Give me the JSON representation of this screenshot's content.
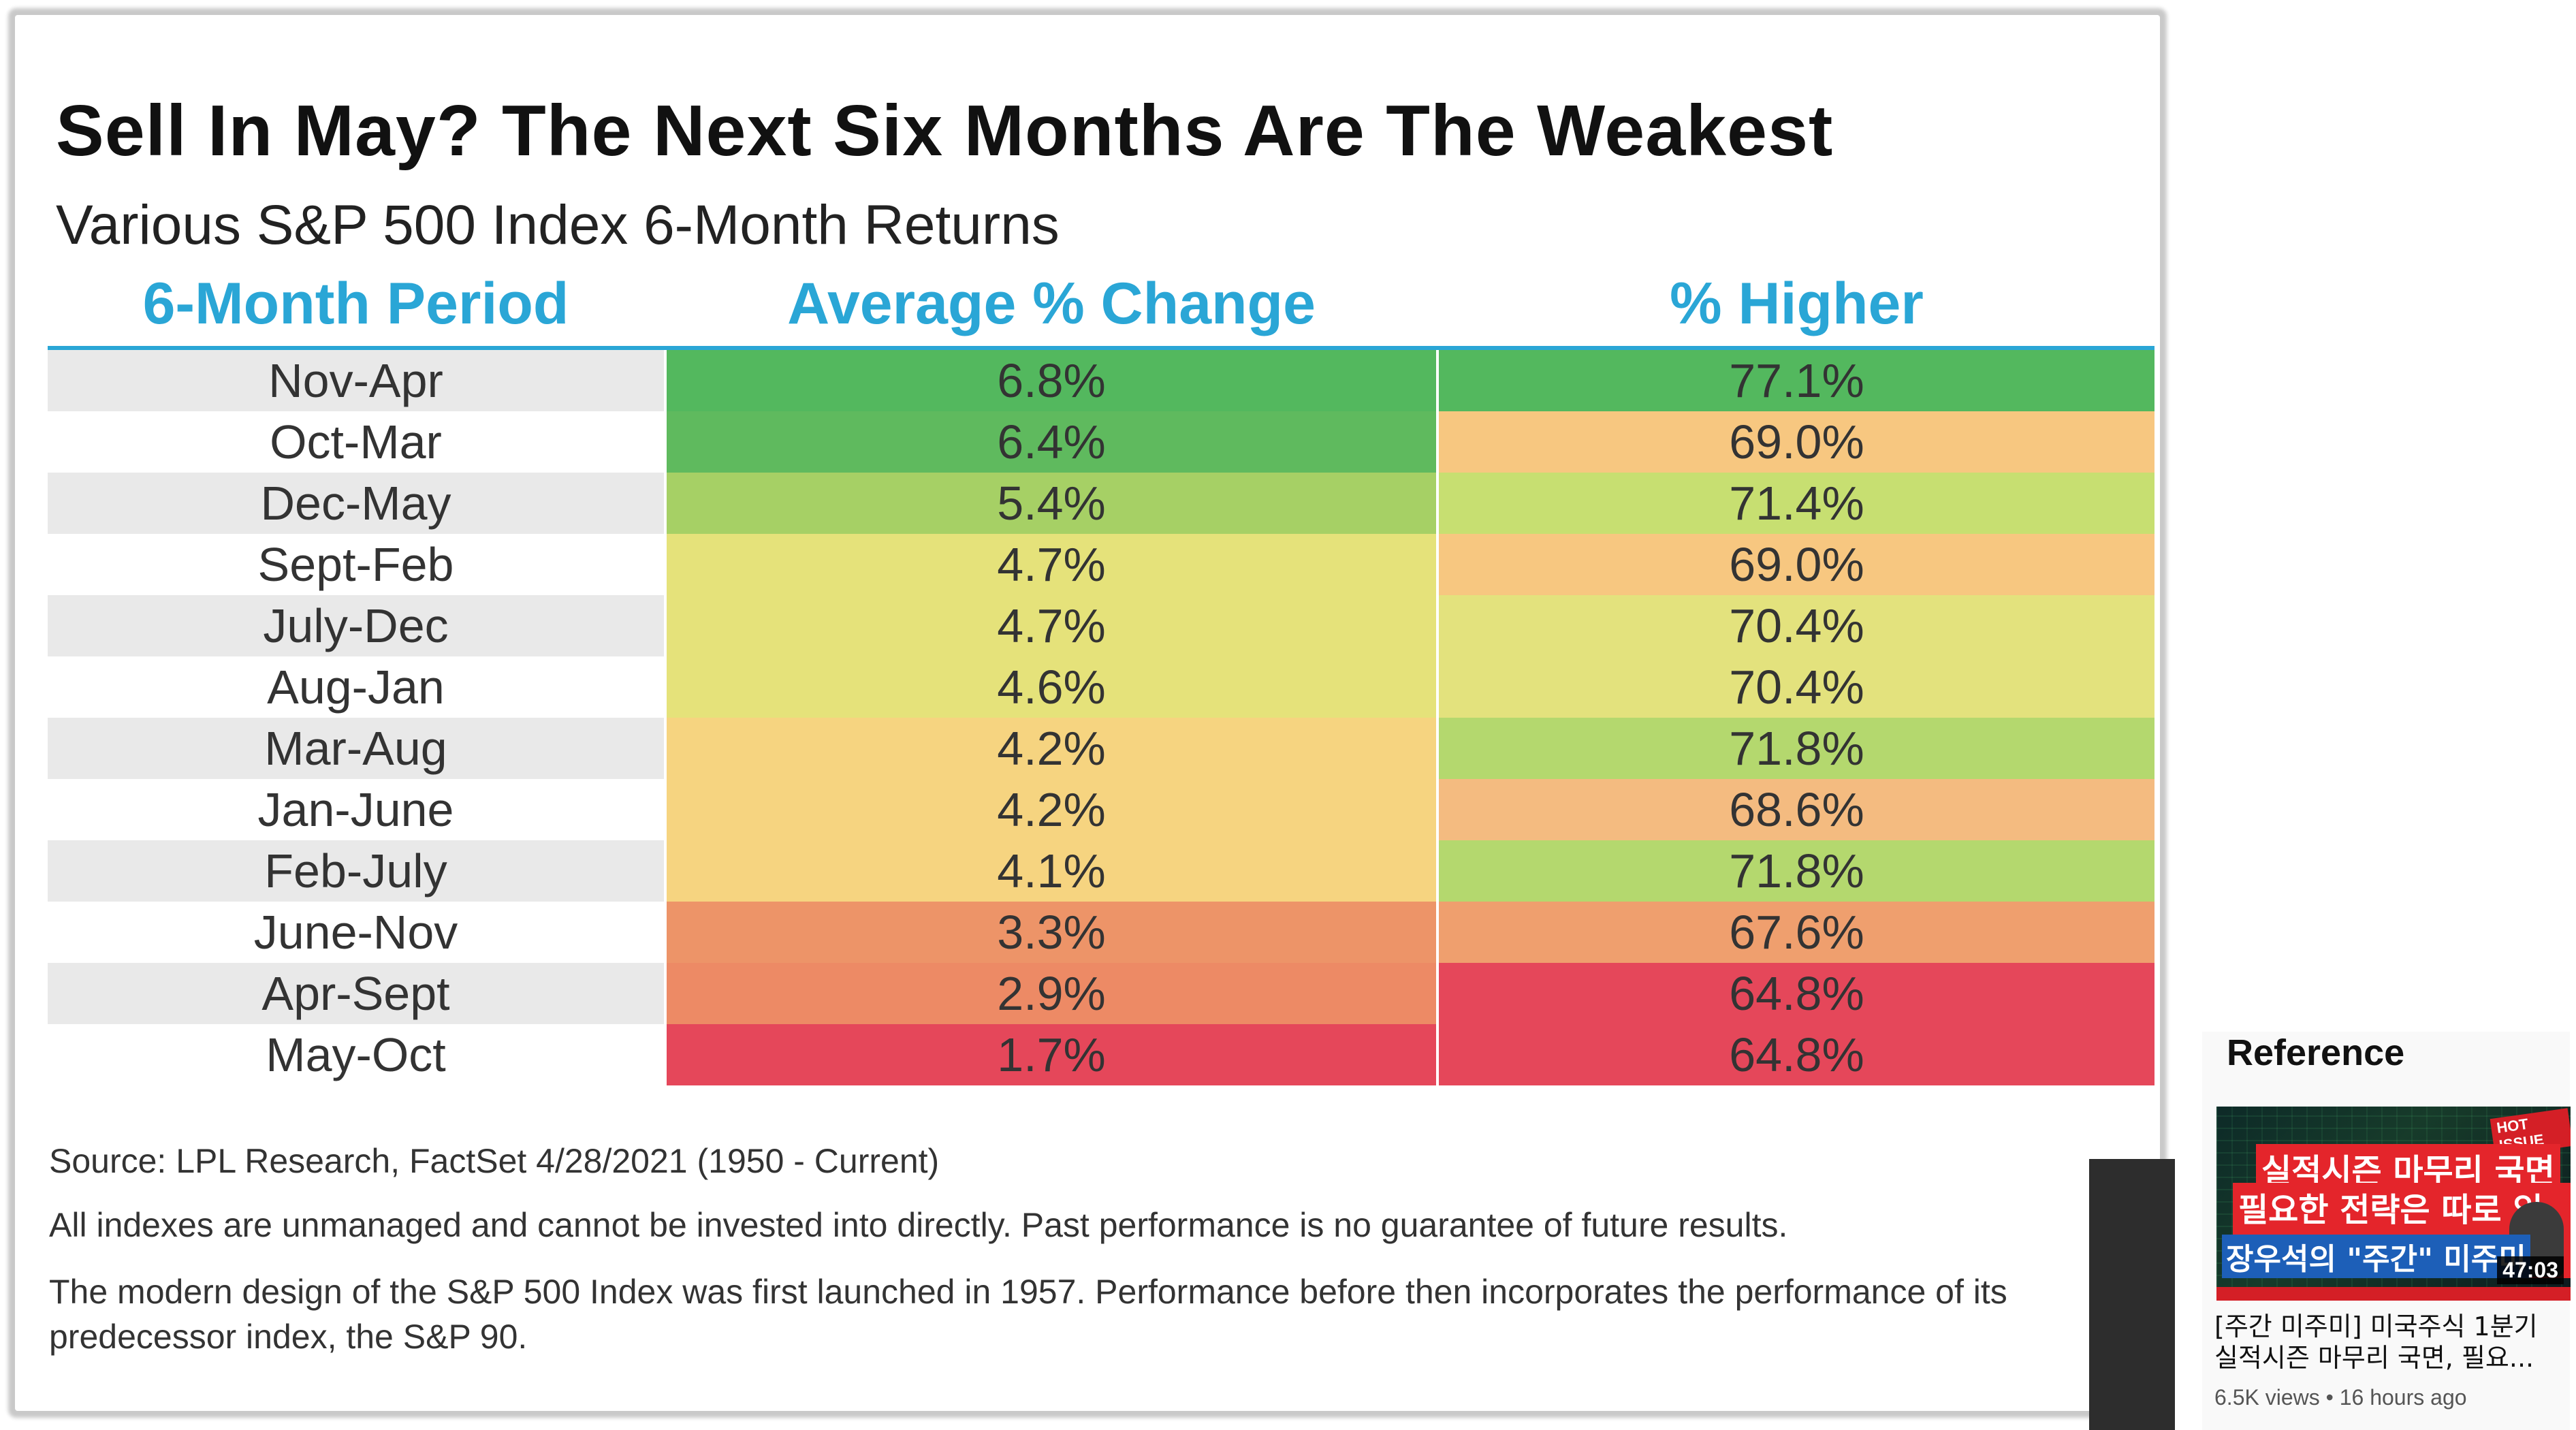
{
  "chart_data": {
    "type": "table",
    "title": "Sell In May? The Next Six Months Are The Weakest",
    "subtitle": "Various S&P 500 Index 6-Month Returns",
    "columns": [
      "6-Month Period",
      "Average % Change",
      "% Higher"
    ],
    "rows": [
      {
        "period": "Nov-Apr",
        "avg": "6.8%",
        "higher": "77.1%",
        "avg_value": 6.8,
        "higher_value": 77.1
      },
      {
        "period": "Oct-Mar",
        "avg": "6.4%",
        "higher": "69.0%",
        "avg_value": 6.4,
        "higher_value": 69.0
      },
      {
        "period": "Dec-May",
        "avg": "5.4%",
        "higher": "71.4%",
        "avg_value": 5.4,
        "higher_value": 71.4
      },
      {
        "period": "Sept-Feb",
        "avg": "4.7%",
        "higher": "69.0%",
        "avg_value": 4.7,
        "higher_value": 69.0
      },
      {
        "period": "July-Dec",
        "avg": "4.7%",
        "higher": "70.4%",
        "avg_value": 4.7,
        "higher_value": 70.4
      },
      {
        "period": "Aug-Jan",
        "avg": "4.6%",
        "higher": "70.4%",
        "avg_value": 4.6,
        "higher_value": 70.4
      },
      {
        "period": "Mar-Aug",
        "avg": "4.2%",
        "higher": "71.8%",
        "avg_value": 4.2,
        "higher_value": 71.8
      },
      {
        "period": "Jan-June",
        "avg": "4.2%",
        "higher": "68.6%",
        "avg_value": 4.2,
        "higher_value": 68.6
      },
      {
        "period": "Feb-July",
        "avg": "4.1%",
        "higher": "71.8%",
        "avg_value": 4.1,
        "higher_value": 71.8
      },
      {
        "period": "June-Nov",
        "avg": "3.3%",
        "higher": "67.6%",
        "avg_value": 3.3,
        "higher_value": 67.6
      },
      {
        "period": "Apr-Sept",
        "avg": "2.9%",
        "higher": "64.8%",
        "avg_value": 2.9,
        "higher_value": 64.8
      },
      {
        "period": "May-Oct",
        "avg": "1.7%",
        "higher": "64.8%",
        "avg_value": 1.7,
        "higher_value": 64.8
      }
    ],
    "avg_colors": [
      "#53b85e",
      "#5fba5e",
      "#a6d065",
      "#e5e27a",
      "#e5e27a",
      "#e5e27a",
      "#f6d480",
      "#f6d480",
      "#f6d480",
      "#ed9468",
      "#ed8a65",
      "#e5475a"
    ],
    "higher_colors": [
      "#53b85e",
      "#f7c780",
      "#c7df71",
      "#f7c780",
      "#e3e27d",
      "#e3e27d",
      "#b4d86e",
      "#f4bb80",
      "#b4d86e",
      "#ef9f6e",
      "#e5475a",
      "#e5475a"
    ],
    "period_colors": [
      "#e9e9e9",
      "#ffffff"
    ]
  },
  "footnotes": {
    "source": "Source: LPL Research, FactSet 4/28/2021 (1950 - Current)",
    "disclaimer": "All indexes are unmanaged and cannot be invested into directly. Past performance is no guarantee of future results.",
    "note": "The modern design of the S&P 500 Index was first launched in 1957. Performance before then incorporates the performance of its predecessor index, the S&P 90."
  },
  "reference": {
    "heading": "Reference",
    "video_title": "[주간 미주미] 미국주식 1분기 실적시즌 마무리 국면, 필요...",
    "meta": "6.5K views • 16 hours ago",
    "duration": "47:03",
    "thumb_line1": "실적시즌 마무리 국면",
    "thumb_line2": "필요한 전략은 따로 있다",
    "thumb_line3": "장우석의 \"주간\" 미주미",
    "badge": "HOT ISSUE"
  }
}
